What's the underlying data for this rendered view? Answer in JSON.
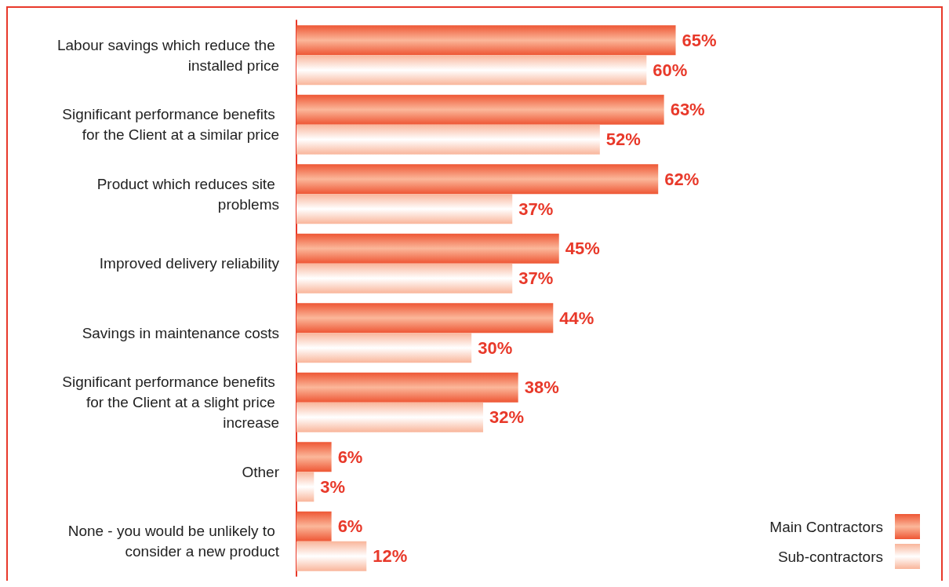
{
  "chart_data": {
    "type": "bar",
    "orientation": "horizontal",
    "categories": [
      "Labour savings which reduce the installed price",
      "Significant performance benefits for the Client at a similar price",
      "Product which reduces site problems",
      "Improved delivery reliability",
      "Savings in maintenance costs",
      "Significant performance benefits for the Client at a slight price increase",
      "Other",
      "None - you would be unlikely to consider a new product"
    ],
    "series": [
      {
        "name": "Main Contractors",
        "color": "#ee5634",
        "values": [
          65,
          63,
          62,
          45,
          44,
          38,
          6,
          6
        ],
        "value_labels": [
          "65%",
          "63%",
          "62%",
          "45%",
          "44%",
          "38%",
          "6%",
          "6%"
        ]
      },
      {
        "name": "Sub-contractors",
        "color": "#f9b59a",
        "values": [
          60,
          52,
          37,
          37,
          30,
          32,
          3,
          12
        ],
        "value_labels": [
          "60%",
          "52%",
          "37%",
          "37%",
          "30%",
          "32%",
          "3%",
          "12%"
        ]
      }
    ],
    "legend": "bottom right",
    "grid": false
  }
}
